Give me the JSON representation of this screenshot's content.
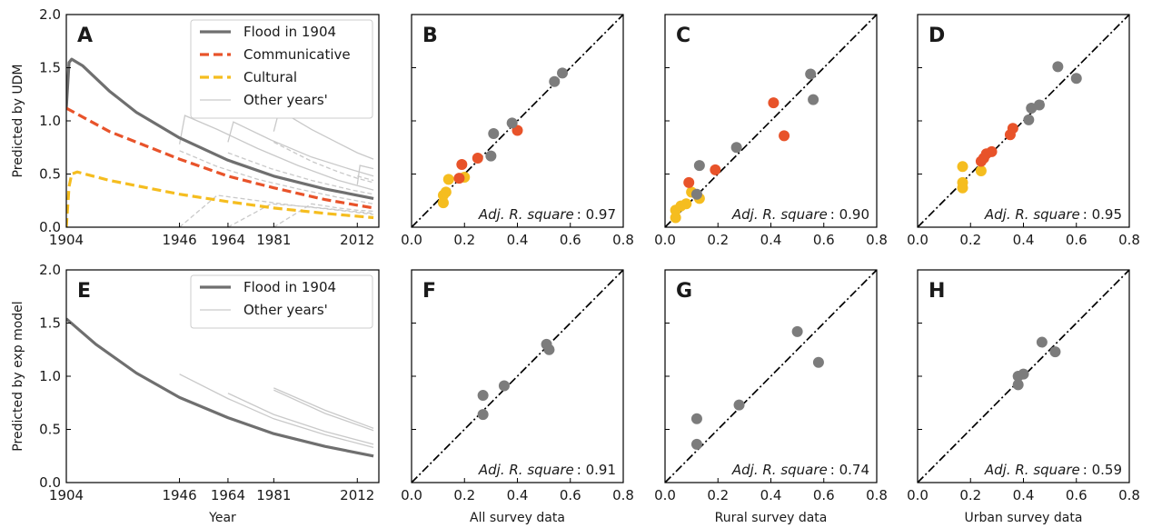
{
  "colors": {
    "flood": "#6f6f6f",
    "communicative": "#e8532a",
    "cultural": "#f5bd1f",
    "other": "#c9c9c9",
    "point_gray": "#7c7c7c"
  },
  "chart_data": [
    {
      "id": "A",
      "letter": "A",
      "type": "line",
      "ylabel": "Predicted by UDM",
      "xlabel": "",
      "xlim": [
        1904,
        2020
      ],
      "ylim": [
        0,
        2.0
      ],
      "xticks": [
        1904,
        1946,
        1964,
        1981,
        2012
      ],
      "yticks": [
        "0.0",
        "0.5",
        "1.0",
        "1.5",
        "2.0"
      ],
      "legend": {
        "position": "top-right",
        "items": [
          "Flood in 1904",
          "Communicative",
          "Cultural",
          "Other years'"
        ]
      },
      "series": [
        {
          "name": "Flood in 1904",
          "style": "solid",
          "color": "flood",
          "x": [
            1904,
            1905,
            1906,
            1910,
            1920,
            1930,
            1946,
            1964,
            1981,
            2000,
            2018
          ],
          "y": [
            1.12,
            1.55,
            1.58,
            1.52,
            1.28,
            1.08,
            0.84,
            0.63,
            0.48,
            0.36,
            0.27
          ]
        },
        {
          "name": "Communicative",
          "style": "dashed",
          "color": "communicative",
          "x": [
            1904,
            1920,
            1946,
            1964,
            1981,
            2000,
            2018
          ],
          "y": [
            1.12,
            0.9,
            0.64,
            0.48,
            0.37,
            0.26,
            0.18
          ]
        },
        {
          "name": "Cultural",
          "style": "dashed",
          "color": "cultural",
          "x": [
            1904,
            1905,
            1906,
            1908,
            1920,
            1946,
            1964,
            1981,
            2000,
            2018
          ],
          "y": [
            0.0,
            0.38,
            0.5,
            0.52,
            0.44,
            0.31,
            0.24,
            0.18,
            0.13,
            0.09
          ]
        }
      ],
      "other_curves": [
        {
          "style": "solid",
          "x": [
            1946,
            1948,
            1960,
            1975,
            1990,
            2005,
            2018
          ],
          "y": [
            0.78,
            1.05,
            0.92,
            0.74,
            0.58,
            0.44,
            0.35
          ]
        },
        {
          "style": "dashed",
          "x": [
            1946,
            1960,
            1975,
            1990,
            2005,
            2018
          ],
          "y": [
            0.72,
            0.57,
            0.45,
            0.36,
            0.28,
            0.22
          ]
        },
        {
          "style": "dashed",
          "x": [
            1946,
            1960,
            1975,
            1990,
            2005,
            2018
          ],
          "y": [
            0.0,
            0.3,
            0.25,
            0.2,
            0.16,
            0.12
          ]
        },
        {
          "style": "solid",
          "x": [
            1964,
            1966,
            1980,
            1995,
            2010,
            2018
          ],
          "y": [
            0.8,
            0.99,
            0.82,
            0.66,
            0.54,
            0.48
          ]
        },
        {
          "style": "dashed",
          "x": [
            1964,
            1980,
            1995,
            2010,
            2018
          ],
          "y": [
            0.7,
            0.55,
            0.44,
            0.35,
            0.31
          ]
        },
        {
          "style": "dashed",
          "x": [
            1964,
            1980,
            1995,
            2010,
            2018
          ],
          "y": [
            0.0,
            0.22,
            0.19,
            0.15,
            0.13
          ]
        },
        {
          "style": "solid",
          "x": [
            1981,
            1983,
            1995,
            2005,
            2012,
            2018
          ],
          "y": [
            0.9,
            1.1,
            0.92,
            0.79,
            0.7,
            0.64
          ]
        },
        {
          "style": "dashed",
          "x": [
            1981,
            1995,
            2005,
            2012,
            2018
          ],
          "y": [
            0.8,
            0.62,
            0.52,
            0.46,
            0.42
          ]
        },
        {
          "style": "dashed",
          "x": [
            1981,
            1995,
            2005,
            2012,
            2018
          ],
          "y": [
            0.0,
            0.22,
            0.18,
            0.16,
            0.15
          ]
        },
        {
          "style": "solid",
          "x": [
            2012,
            2013,
            2018
          ],
          "y": [
            0.4,
            0.58,
            0.55
          ]
        },
        {
          "style": "dashed",
          "x": [
            2012,
            2018
          ],
          "y": [
            0.48,
            0.44
          ]
        }
      ]
    },
    {
      "id": "B",
      "letter": "B",
      "type": "scatter",
      "xlabel": "",
      "xlim": [
        0,
        0.8
      ],
      "ylim": [
        0,
        2.0
      ],
      "xticks": [
        "0.0",
        "0.2",
        "0.4",
        "0.6",
        "0.8"
      ],
      "adj_label": "Adj. R. square",
      "adj_value": ": 0.97",
      "points": [
        {
          "x": 0.12,
          "y": 0.23,
          "c": "cultural"
        },
        {
          "x": 0.12,
          "y": 0.3,
          "c": "cultural"
        },
        {
          "x": 0.13,
          "y": 0.33,
          "c": "cultural"
        },
        {
          "x": 0.14,
          "y": 0.45,
          "c": "cultural"
        },
        {
          "x": 0.2,
          "y": 0.47,
          "c": "cultural"
        },
        {
          "x": 0.18,
          "y": 0.46,
          "c": "communicative"
        },
        {
          "x": 0.19,
          "y": 0.59,
          "c": "communicative"
        },
        {
          "x": 0.25,
          "y": 0.65,
          "c": "communicative"
        },
        {
          "x": 0.4,
          "y": 0.91,
          "c": "communicative"
        },
        {
          "x": 0.3,
          "y": 0.67,
          "c": "point_gray"
        },
        {
          "x": 0.31,
          "y": 0.88,
          "c": "point_gray"
        },
        {
          "x": 0.38,
          "y": 0.98,
          "c": "point_gray"
        },
        {
          "x": 0.54,
          "y": 1.37,
          "c": "point_gray"
        },
        {
          "x": 0.57,
          "y": 1.45,
          "c": "point_gray"
        }
      ]
    },
    {
      "id": "C",
      "letter": "C",
      "type": "scatter",
      "xlabel": "",
      "xlim": [
        0,
        0.8
      ],
      "ylim": [
        0,
        2.0
      ],
      "xticks": [
        "0.0",
        "0.2",
        "0.4",
        "0.6",
        "0.8"
      ],
      "adj_label": "Adj. R. square",
      "adj_value": ": 0.90",
      "points": [
        {
          "x": 0.04,
          "y": 0.09,
          "c": "cultural"
        },
        {
          "x": 0.04,
          "y": 0.16,
          "c": "cultural"
        },
        {
          "x": 0.06,
          "y": 0.2,
          "c": "cultural"
        },
        {
          "x": 0.08,
          "y": 0.22,
          "c": "cultural"
        },
        {
          "x": 0.1,
          "y": 0.33,
          "c": "cultural"
        },
        {
          "x": 0.13,
          "y": 0.27,
          "c": "cultural"
        },
        {
          "x": 0.09,
          "y": 0.42,
          "c": "communicative"
        },
        {
          "x": 0.19,
          "y": 0.54,
          "c": "communicative"
        },
        {
          "x": 0.41,
          "y": 1.17,
          "c": "communicative"
        },
        {
          "x": 0.45,
          "y": 0.86,
          "c": "communicative"
        },
        {
          "x": 0.12,
          "y": 0.31,
          "c": "point_gray"
        },
        {
          "x": 0.13,
          "y": 0.58,
          "c": "point_gray"
        },
        {
          "x": 0.27,
          "y": 0.75,
          "c": "point_gray"
        },
        {
          "x": 0.55,
          "y": 1.44,
          "c": "point_gray"
        },
        {
          "x": 0.56,
          "y": 1.2,
          "c": "point_gray"
        }
      ]
    },
    {
      "id": "D",
      "letter": "D",
      "type": "scatter",
      "xlabel": "",
      "xlim": [
        0,
        0.8
      ],
      "ylim": [
        0,
        2.0
      ],
      "xticks": [
        "0.0",
        "0.2",
        "0.4",
        "0.6",
        "0.8"
      ],
      "adj_label": "Adj. R. square",
      "adj_value": ": 0.95",
      "points": [
        {
          "x": 0.17,
          "y": 0.57,
          "c": "cultural"
        },
        {
          "x": 0.17,
          "y": 0.42,
          "c": "cultural"
        },
        {
          "x": 0.17,
          "y": 0.37,
          "c": "cultural"
        },
        {
          "x": 0.24,
          "y": 0.53,
          "c": "cultural"
        },
        {
          "x": 0.24,
          "y": 0.62,
          "c": "communicative"
        },
        {
          "x": 0.25,
          "y": 0.65,
          "c": "communicative"
        },
        {
          "x": 0.26,
          "y": 0.69,
          "c": "communicative"
        },
        {
          "x": 0.28,
          "y": 0.71,
          "c": "communicative"
        },
        {
          "x": 0.35,
          "y": 0.87,
          "c": "communicative"
        },
        {
          "x": 0.36,
          "y": 0.93,
          "c": "communicative"
        },
        {
          "x": 0.42,
          "y": 1.01,
          "c": "point_gray"
        },
        {
          "x": 0.43,
          "y": 1.12,
          "c": "point_gray"
        },
        {
          "x": 0.46,
          "y": 1.15,
          "c": "point_gray"
        },
        {
          "x": 0.53,
          "y": 1.51,
          "c": "point_gray"
        },
        {
          "x": 0.6,
          "y": 1.4,
          "c": "point_gray"
        }
      ]
    },
    {
      "id": "E",
      "letter": "E",
      "type": "line",
      "ylabel": "Predicted by exp model",
      "xlabel": "Year",
      "xlim": [
        1904,
        2020
      ],
      "ylim": [
        0,
        2.0
      ],
      "xticks": [
        1904,
        1946,
        1964,
        1981,
        2012
      ],
      "yticks": [
        "0.0",
        "0.5",
        "1.0",
        "1.5",
        "2.0"
      ],
      "legend": {
        "position": "top-right",
        "items": [
          "Flood in 1904",
          "Other years'"
        ]
      },
      "series": [
        {
          "name": "Flood in 1904",
          "style": "solid",
          "color": "flood",
          "x": [
            1904,
            1915,
            1930,
            1946,
            1964,
            1981,
            2000,
            2018
          ],
          "y": [
            1.54,
            1.3,
            1.03,
            0.8,
            0.61,
            0.46,
            0.34,
            0.25
          ]
        }
      ],
      "other_curves": [
        {
          "style": "solid",
          "x": [
            1946,
            1964,
            1981,
            2000,
            2018
          ],
          "y": [
            1.02,
            0.79,
            0.6,
            0.45,
            0.33
          ]
        },
        {
          "style": "solid",
          "x": [
            1964,
            1981,
            2000,
            2018
          ],
          "y": [
            0.84,
            0.64,
            0.48,
            0.36
          ]
        },
        {
          "style": "solid",
          "x": [
            1981,
            2000,
            2018
          ],
          "y": [
            0.89,
            0.68,
            0.51
          ]
        },
        {
          "style": "solid",
          "x": [
            1981,
            2000,
            2018
          ],
          "y": [
            0.87,
            0.65,
            0.49
          ]
        }
      ]
    },
    {
      "id": "F",
      "letter": "F",
      "type": "scatter",
      "xlabel": "All survey data",
      "xlim": [
        0,
        0.8
      ],
      "ylim": [
        0,
        2.0
      ],
      "xticks": [
        "0.0",
        "0.2",
        "0.4",
        "0.6",
        "0.8"
      ],
      "adj_label": "Adj. R. square",
      "adj_value": ": 0.91",
      "points": [
        {
          "x": 0.27,
          "y": 0.64,
          "c": "point_gray"
        },
        {
          "x": 0.27,
          "y": 0.82,
          "c": "point_gray"
        },
        {
          "x": 0.35,
          "y": 0.91,
          "c": "point_gray"
        },
        {
          "x": 0.51,
          "y": 1.3,
          "c": "point_gray"
        },
        {
          "x": 0.52,
          "y": 1.25,
          "c": "point_gray"
        }
      ]
    },
    {
      "id": "G",
      "letter": "G",
      "type": "scatter",
      "xlabel": "Rural survey data",
      "xlim": [
        0,
        0.8
      ],
      "ylim": [
        0,
        2.0
      ],
      "xticks": [
        "0.0",
        "0.2",
        "0.4",
        "0.6",
        "0.8"
      ],
      "adj_label": "Adj. R. square",
      "adj_value": ": 0.74",
      "points": [
        {
          "x": 0.12,
          "y": 0.36,
          "c": "point_gray"
        },
        {
          "x": 0.12,
          "y": 0.6,
          "c": "point_gray"
        },
        {
          "x": 0.28,
          "y": 0.73,
          "c": "point_gray"
        },
        {
          "x": 0.5,
          "y": 1.42,
          "c": "point_gray"
        },
        {
          "x": 0.58,
          "y": 1.13,
          "c": "point_gray"
        }
      ]
    },
    {
      "id": "H",
      "letter": "H",
      "type": "scatter",
      "xlabel": "Urban survey data",
      "xlim": [
        0,
        0.8
      ],
      "ylim": [
        0,
        2.0
      ],
      "xticks": [
        "0.0",
        "0.2",
        "0.4",
        "0.6",
        "0.8"
      ],
      "adj_label": "Adj. R. square",
      "adj_value": ": 0.59",
      "points": [
        {
          "x": 0.38,
          "y": 0.92,
          "c": "point_gray"
        },
        {
          "x": 0.38,
          "y": 1.0,
          "c": "point_gray"
        },
        {
          "x": 0.4,
          "y": 1.02,
          "c": "point_gray"
        },
        {
          "x": 0.47,
          "y": 1.32,
          "c": "point_gray"
        },
        {
          "x": 0.52,
          "y": 1.23,
          "c": "point_gray"
        }
      ]
    }
  ]
}
